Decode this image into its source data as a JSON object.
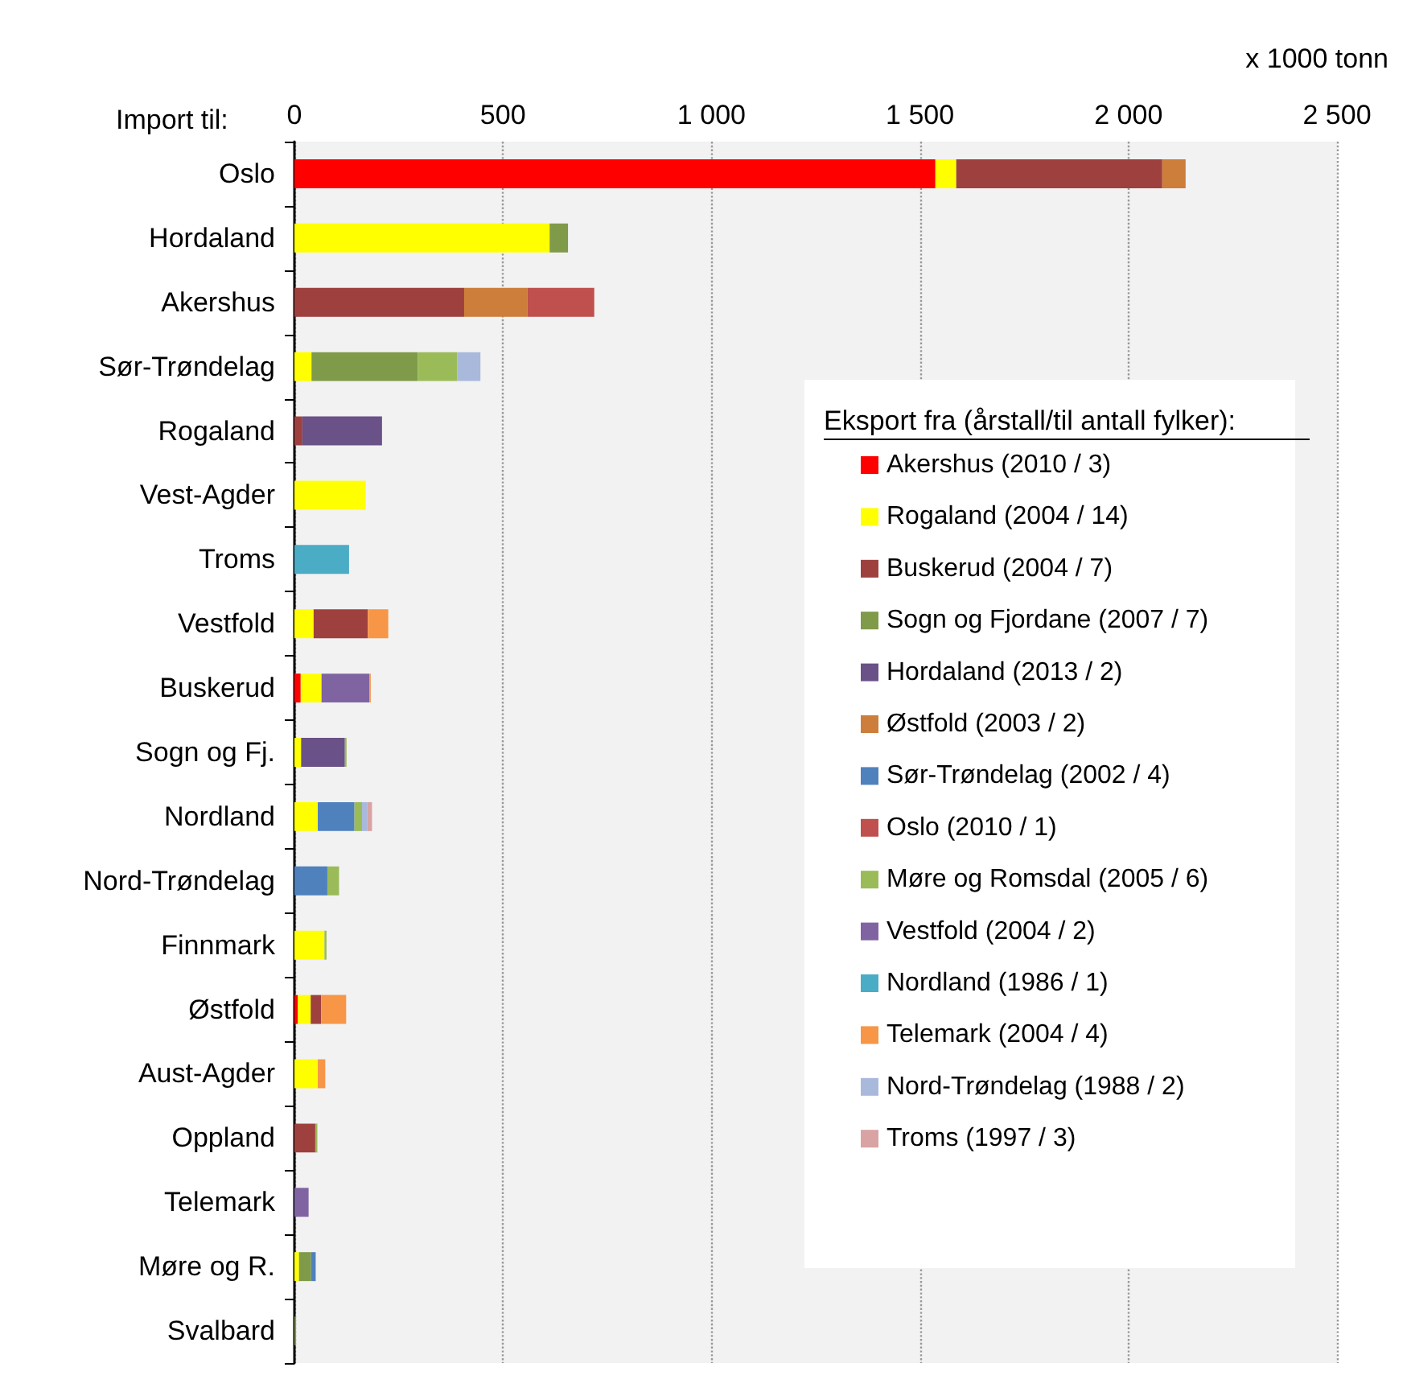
{
  "chart_data": {
    "type": "bar",
    "orientation": "horizontal",
    "stacked": true,
    "xlabel": "x 1000 tonn",
    "ylabel": "Import til:",
    "legend_title": "Eksport fra (årstall/til antall fylker):",
    "legend": "right",
    "grid": "x",
    "categories": [
      "Oslo",
      "Hordaland",
      "Akershus",
      "Sør-Trøndelag",
      "Rogaland",
      "Vest-Agder",
      "Troms",
      "Vestfold",
      "Buskerud",
      "Sogn og Fj.",
      "Nordland",
      "Nord-Trøndelag",
      "Finnmark",
      "Østfold",
      "Aust-Agder",
      "Oppland",
      "Telemark",
      "Møre og R.",
      "Svalbard"
    ],
    "xlim": [
      0,
      2500
    ],
    "xticks": [
      0,
      500,
      {
        "value": 1000,
        "label": "1 000"
      },
      {
        "value": 1500,
        "label": "1 500"
      },
      {
        "value": 2000,
        "label": "2 000"
      },
      {
        "value": 2500,
        "label": "2 500"
      }
    ],
    "series": [
      {
        "name": "Akershus (2010 / 3)",
        "color": "#ff0000",
        "values": [
          1537,
          null,
          null,
          null,
          null,
          null,
          null,
          null,
          15,
          null,
          null,
          null,
          null,
          8,
          null,
          null,
          null,
          null,
          null
        ]
      },
      {
        "name": "Rogaland (2004 / 14)",
        "color": "#ffff00",
        "values": [
          50,
          612,
          null,
          41,
          null,
          171,
          null,
          46,
          50,
          16,
          56,
          null,
          72,
          31,
          56,
          null,
          null,
          11,
          null
        ]
      },
      {
        "name": "Buskerud (2004 / 7)",
        "color": "#9e413e",
        "values": [
          494,
          null,
          407,
          null,
          19,
          null,
          null,
          130,
          null,
          null,
          null,
          null,
          null,
          25,
          null,
          50,
          null,
          null,
          null
        ]
      },
      {
        "name": "Sogn og Fjordane (2007 / 7)",
        "color": "#7f9a48",
        "values": [
          null,
          44,
          null,
          255,
          null,
          null,
          null,
          null,
          null,
          null,
          null,
          null,
          null,
          null,
          null,
          null,
          null,
          29,
          4
        ]
      },
      {
        "name": "Hordaland (2013 / 2)",
        "color": "#6a5187",
        "values": [
          null,
          null,
          null,
          null,
          191,
          null,
          null,
          null,
          null,
          105,
          null,
          null,
          null,
          null,
          null,
          null,
          null,
          null,
          null
        ]
      },
      {
        "name": "Østfold (2003 / 2)",
        "color": "#cd7e3a",
        "values": [
          56,
          null,
          152,
          null,
          null,
          null,
          null,
          null,
          null,
          null,
          null,
          null,
          null,
          null,
          null,
          null,
          null,
          null,
          null
        ]
      },
      {
        "name": "Sør-Trøndelag (2002 / 4)",
        "color": "#4f81bd",
        "values": [
          null,
          null,
          null,
          null,
          null,
          null,
          null,
          null,
          null,
          null,
          88,
          79,
          null,
          null,
          null,
          null,
          null,
          11,
          null
        ]
      },
      {
        "name": "Oslo (2010 / 1)",
        "color": "#c0504d",
        "values": [
          null,
          null,
          160,
          null,
          null,
          null,
          null,
          null,
          null,
          null,
          null,
          null,
          null,
          null,
          null,
          null,
          null,
          null,
          null
        ]
      },
      {
        "name": "Møre og Romsdal (2005 / 6)",
        "color": "#9bbb59",
        "values": [
          null,
          null,
          null,
          94,
          null,
          null,
          null,
          null,
          null,
          4,
          18,
          28,
          5,
          null,
          null,
          5,
          null,
          null,
          null
        ]
      },
      {
        "name": "Vestfold (2004 / 2)",
        "color": "#8064a2",
        "values": [
          null,
          null,
          null,
          null,
          null,
          null,
          null,
          null,
          115,
          null,
          null,
          null,
          null,
          null,
          null,
          null,
          34,
          null,
          null
        ]
      },
      {
        "name": "Nordland (1986 / 1)",
        "color": "#4bacc6",
        "values": [
          null,
          null,
          null,
          null,
          null,
          null,
          131,
          null,
          null,
          null,
          null,
          null,
          null,
          null,
          null,
          null,
          null,
          null,
          null
        ]
      },
      {
        "name": "Telemark (2004 / 4)",
        "color": "#f79646",
        "values": [
          null,
          null,
          null,
          null,
          null,
          null,
          null,
          49,
          3,
          null,
          null,
          null,
          null,
          60,
          18,
          null,
          null,
          null,
          null
        ]
      },
      {
        "name": "Nord-Trøndelag (1988 / 2)",
        "color": "#a9b9dc",
        "values": [
          null,
          null,
          null,
          56,
          null,
          null,
          null,
          null,
          null,
          null,
          13,
          null,
          null,
          null,
          null,
          null,
          null,
          null,
          null
        ]
      },
      {
        "name": "Troms (1997 / 3)",
        "color": "#d8a3a2",
        "values": [
          null,
          null,
          null,
          null,
          null,
          null,
          null,
          null,
          null,
          null,
          11,
          null,
          null,
          null,
          null,
          null,
          null,
          null,
          null
        ]
      }
    ]
  }
}
